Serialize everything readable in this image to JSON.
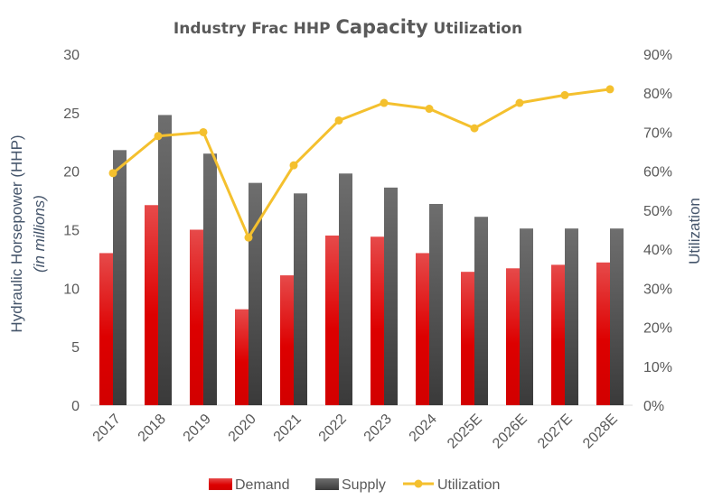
{
  "chart_data": {
    "type": "bar",
    "title_part1": "Industry Frac HHP ",
    "title_part2": "Capacity",
    "title_part3": " Utilization",
    "categories": [
      "2017",
      "2018",
      "2019",
      "2020",
      "2021",
      "2022",
      "2023",
      "2024",
      "2025E",
      "2026E",
      "2027E",
      "2028E"
    ],
    "series": [
      {
        "name": "Demand",
        "axis": "left",
        "kind": "bar",
        "color": "#e00000",
        "values": [
          13.0,
          17.1,
          15.0,
          8.2,
          11.1,
          14.5,
          14.4,
          13.0,
          11.4,
          11.7,
          12.0,
          12.2
        ]
      },
      {
        "name": "Supply",
        "axis": "left",
        "kind": "bar",
        "color": "#555555",
        "values": [
          21.8,
          24.8,
          21.5,
          19.0,
          18.1,
          19.8,
          18.6,
          17.2,
          16.1,
          15.1,
          15.1,
          15.1
        ]
      },
      {
        "name": "Utilization",
        "axis": "right",
        "kind": "line",
        "color": "#f4c02e",
        "values": [
          0.595,
          0.69,
          0.7,
          0.43,
          0.615,
          0.73,
          0.775,
          0.76,
          0.71,
          0.775,
          0.795,
          0.81
        ]
      }
    ],
    "ylabel": "Hydraulic Horsepower (HHP)",
    "ylabel_sub": "(in millions)",
    "y2label": "Utilization",
    "ylim": [
      0,
      30
    ],
    "yticks": [
      "0",
      "5",
      "10",
      "15",
      "20",
      "25",
      "30"
    ],
    "y2lim": [
      0,
      0.9
    ],
    "y2ticks": [
      "0%",
      "10%",
      "20%",
      "30%",
      "40%",
      "50%",
      "60%",
      "70%",
      "80%",
      "90%"
    ],
    "grid": false,
    "legend_position": "bottom"
  }
}
